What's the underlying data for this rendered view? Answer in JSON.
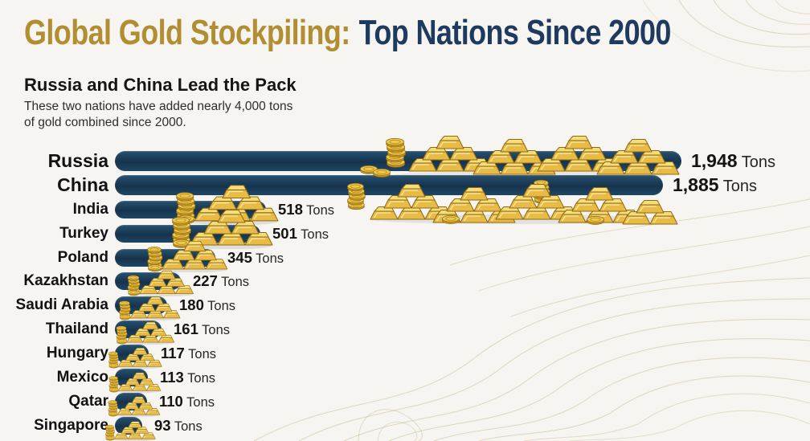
{
  "header": {
    "title_gold": "Global Gold Stockpiling:",
    "title_navy": "Top Nations Since 2000",
    "subtitle": "Russia and China Lead the Pack",
    "description_line1": "These two nations have added nearly 4,000 tons",
    "description_line2": "of gold combined since 2000."
  },
  "chart_data": {
    "type": "bar",
    "orientation": "horizontal",
    "title": "Global Gold Stockpiling: Top Nations Since 2000",
    "subtitle": "Russia and China Lead the Pack",
    "annotation": "These two nations have added nearly 4,000 tons of gold combined since 2000.",
    "categories": [
      "Russia",
      "China",
      "India",
      "Turkey",
      "Poland",
      "Kazakhstan",
      "Saudi Arabia",
      "Thailand",
      "Hungary",
      "Mexico",
      "Qatar",
      "Singapore"
    ],
    "values": [
      1948,
      1885,
      518,
      501,
      345,
      227,
      180,
      161,
      117,
      113,
      110,
      93
    ],
    "value_labels": [
      "1,948",
      "1,885",
      "518",
      "501",
      "345",
      "227",
      "180",
      "161",
      "117",
      "113",
      "110",
      "93"
    ],
    "unit": "Tons",
    "xlim": [
      0,
      2000
    ],
    "grid": false,
    "legend": false
  },
  "colors": {
    "title_gold": "#b28e33",
    "title_navy": "#1e3a5f",
    "bar_navy_dark": "#16334d",
    "bar_navy_light": "#27516f",
    "gold_light": "#f6dd7c",
    "gold_mid": "#e7bb45",
    "gold_dark": "#8f6a13",
    "background": "#f7f5f1",
    "contour_line": "#c9b88d",
    "text": "#141414"
  }
}
